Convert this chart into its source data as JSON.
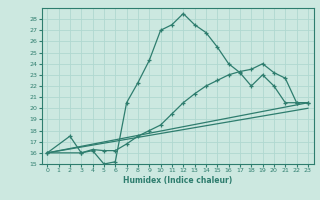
{
  "xlabel": "Humidex (Indice chaleur)",
  "bg_color": "#cce8e0",
  "line_color": "#2e7d6e",
  "grid_color": "#b0d8d0",
  "xlim": [
    -0.5,
    23.5
  ],
  "ylim": [
    15,
    29
  ],
  "xticks": [
    0,
    1,
    2,
    3,
    4,
    5,
    6,
    7,
    8,
    9,
    10,
    11,
    12,
    13,
    14,
    15,
    16,
    17,
    18,
    19,
    20,
    21,
    22,
    23
  ],
  "yticks": [
    15,
    16,
    17,
    18,
    19,
    20,
    21,
    22,
    23,
    24,
    25,
    26,
    27,
    28
  ],
  "curve1_x": [
    0,
    2,
    3,
    4,
    5,
    6,
    7,
    8,
    9,
    10,
    11,
    12,
    13,
    14,
    15,
    16,
    17,
    18,
    19,
    20,
    21,
    22,
    23
  ],
  "curve1_y": [
    16,
    17.5,
    16.0,
    16.2,
    15.0,
    15.2,
    20.5,
    22.3,
    24.3,
    27.0,
    27.5,
    28.5,
    27.5,
    26.8,
    25.5,
    24.0,
    23.2,
    22.0,
    23.0,
    22.0,
    20.5,
    20.5,
    20.5
  ],
  "curve2_x": [
    0,
    3,
    4,
    5,
    6,
    7,
    8,
    9,
    10,
    11,
    12,
    13,
    14,
    15,
    16,
    17,
    18,
    19,
    20,
    21,
    22,
    23
  ],
  "curve2_y": [
    16,
    16.0,
    16.3,
    16.2,
    16.2,
    16.8,
    17.5,
    18.0,
    18.5,
    19.5,
    20.5,
    21.3,
    22.0,
    22.5,
    23.0,
    23.3,
    23.5,
    24.0,
    23.2,
    22.7,
    20.5,
    20.5
  ],
  "curve3_x": [
    0,
    23
  ],
  "curve3_y": [
    16,
    20.5
  ],
  "curve4_x": [
    0,
    23
  ],
  "curve4_y": [
    16,
    20.0
  ]
}
